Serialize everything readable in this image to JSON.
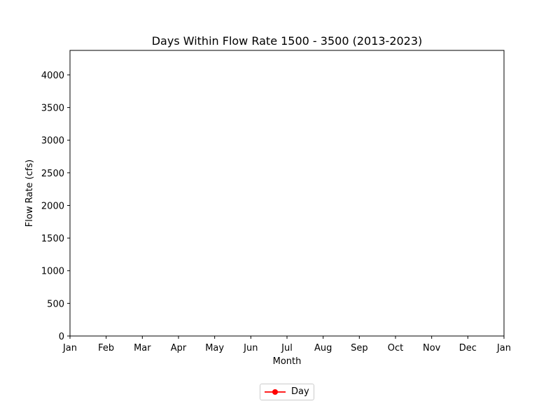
{
  "chart_data": {
    "type": "line",
    "title": "Days Within Flow Rate 1500 - 3500 (2013-2023)",
    "xlabel": "Month",
    "ylabel": "Flow Rate (cfs)",
    "x_ticks": [
      "Jan",
      "Feb",
      "Mar",
      "Apr",
      "May",
      "Jun",
      "Jul",
      "Aug",
      "Sep",
      "Oct",
      "Nov",
      "Dec",
      "Jan"
    ],
    "y_ticks": [
      0,
      500,
      1000,
      1500,
      2000,
      2500,
      3000,
      3500,
      4000
    ],
    "ylim": [
      0,
      4375
    ],
    "grid": false,
    "legend_position": "bottom-center",
    "series": [
      {
        "name": "Day",
        "color": "#ff0000",
        "marker": "circle",
        "x": [],
        "y": []
      }
    ]
  }
}
